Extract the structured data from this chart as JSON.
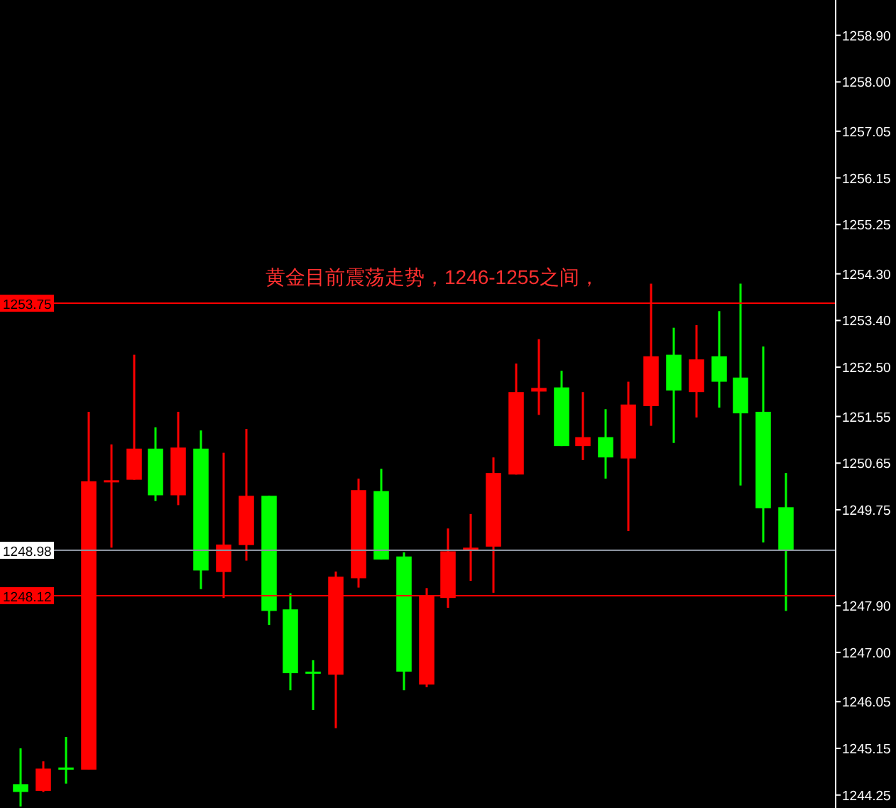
{
  "chart_data": {
    "type": "candlestick",
    "categories": [
      null,
      null,
      null,
      null,
      null,
      null,
      null,
      null,
      null,
      null,
      null,
      null,
      null,
      null,
      null,
      null,
      null,
      null,
      null,
      null,
      null,
      null,
      null,
      null,
      null,
      null,
      null,
      null,
      null,
      null,
      null,
      null,
      null,
      null,
      null
    ],
    "ohlc": [
      [
        1244.46,
        1245.15,
        1244.03,
        1244.31
      ],
      [
        1244.33,
        1244.9,
        1244.31,
        1244.76
      ],
      [
        1244.78,
        1245.37,
        1244.47,
        1244.78
      ],
      [
        1244.74,
        1251.64,
        1244.74,
        1250.3
      ],
      [
        1250.32,
        1251.01,
        1249.02,
        1250.32
      ],
      [
        1250.33,
        1252.74,
        1250.33,
        1250.93
      ],
      [
        1250.93,
        1251.34,
        1249.92,
        1250.03
      ],
      [
        1250.03,
        1251.64,
        1249.84,
        1250.95
      ],
      [
        1250.93,
        1251.28,
        1248.22,
        1248.58
      ],
      [
        1248.55,
        1250.85,
        1248.05,
        1249.08
      ],
      [
        1249.07,
        1251.31,
        1248.77,
        1250.02
      ],
      [
        1250.02,
        1250.02,
        1247.53,
        1247.8
      ],
      [
        1247.83,
        1248.14,
        1246.27,
        1246.6
      ],
      [
        1246.63,
        1246.85,
        1245.89,
        1246.63
      ],
      [
        1246.57,
        1248.56,
        1245.54,
        1248.46
      ],
      [
        1248.43,
        1250.35,
        1248.25,
        1250.13
      ],
      [
        1250.11,
        1250.54,
        1248.79,
        1248.79
      ],
      [
        1248.85,
        1248.93,
        1246.27,
        1246.63
      ],
      [
        1246.38,
        1248.24,
        1246.33,
        1248.08
      ],
      [
        1248.05,
        1249.39,
        1247.86,
        1248.95
      ],
      [
        1249.02,
        1249.67,
        1248.38,
        1249.02
      ],
      [
        1249.04,
        1250.76,
        1248.15,
        1250.46
      ],
      [
        1250.43,
        1252.57,
        1250.43,
        1252.02
      ],
      [
        1252.03,
        1253.04,
        1251.58,
        1252.1
      ],
      [
        1252.11,
        1252.43,
        1250.98,
        1250.98
      ],
      [
        1250.98,
        1252.02,
        1250.71,
        1251.15
      ],
      [
        1251.15,
        1251.69,
        1250.35,
        1250.76
      ],
      [
        1250.74,
        1252.22,
        1249.34,
        1251.78
      ],
      [
        1251.75,
        1254.11,
        1251.37,
        1252.71
      ],
      [
        1252.74,
        1253.26,
        1251.04,
        1252.05
      ],
      [
        1252.02,
        1253.31,
        1251.53,
        1252.65
      ],
      [
        1252.71,
        1253.58,
        1251.72,
        1252.22
      ],
      [
        1252.3,
        1254.11,
        1250.22,
        1251.61
      ],
      [
        1251.64,
        1252.9,
        1249.12,
        1249.78
      ],
      [
        1249.8,
        1250.46,
        1247.8,
        1248.98
      ]
    ],
    "colors": [
      "#00ff00",
      "#ff0000",
      "#00ff00",
      "#ff0000",
      "#ff0000",
      "#ff0000",
      "#00ff00",
      "#ff0000",
      "#00ff00",
      "#ff0000",
      "#ff0000",
      "#00ff00",
      "#00ff00",
      "#00ff00",
      "#ff0000",
      "#ff0000",
      "#00ff00",
      "#00ff00",
      "#ff0000",
      "#ff0000",
      "#ff0000",
      "#ff0000",
      "#ff0000",
      "#ff0000",
      "#00ff00",
      "#ff0000",
      "#00ff00",
      "#ff0000",
      "#ff0000",
      "#00ff00",
      "#ff0000",
      "#00ff00",
      "#00ff00",
      "#00ff00",
      "#00ff00"
    ],
    "ylim": [
      1244.0,
      1259.58
    ],
    "yticks": [
      {
        "value": 1258.9,
        "label": "1258.90"
      },
      {
        "value": 1258.0,
        "label": "1258.00"
      },
      {
        "value": 1257.05,
        "label": "1257.05"
      },
      {
        "value": 1256.15,
        "label": "1256.15"
      },
      {
        "value": 1255.25,
        "label": "1255.25"
      },
      {
        "value": 1254.3,
        "label": "1254.30"
      },
      {
        "value": 1253.4,
        "label": "1253.40"
      },
      {
        "value": 1252.5,
        "label": "1252.50"
      },
      {
        "value": 1251.55,
        "label": "1251.55"
      },
      {
        "value": 1250.65,
        "label": "1250.65"
      },
      {
        "value": 1249.75,
        "label": "1249.75"
      },
      {
        "value": 1247.9,
        "label": "1247.90"
      },
      {
        "value": 1247.0,
        "label": "1247.00"
      },
      {
        "value": 1246.05,
        "label": "1246.05"
      },
      {
        "value": 1245.15,
        "label": "1245.15"
      },
      {
        "value": 1244.25,
        "label": "1244.25"
      }
    ],
    "ref_lines": [
      {
        "axis": "y",
        "value": 1253.75,
        "label": "1253.75",
        "color": "#ff0000"
      },
      {
        "axis": "y",
        "value": 1248.98,
        "label": "1248.98",
        "color": "#8c94a0"
      },
      {
        "axis": "y",
        "value": 1248.12,
        "label": "1248.12",
        "color": "#ff0000"
      }
    ],
    "annotations": [
      "黄金目前震荡走势，1246-1255之间，"
    ],
    "grid": false
  }
}
